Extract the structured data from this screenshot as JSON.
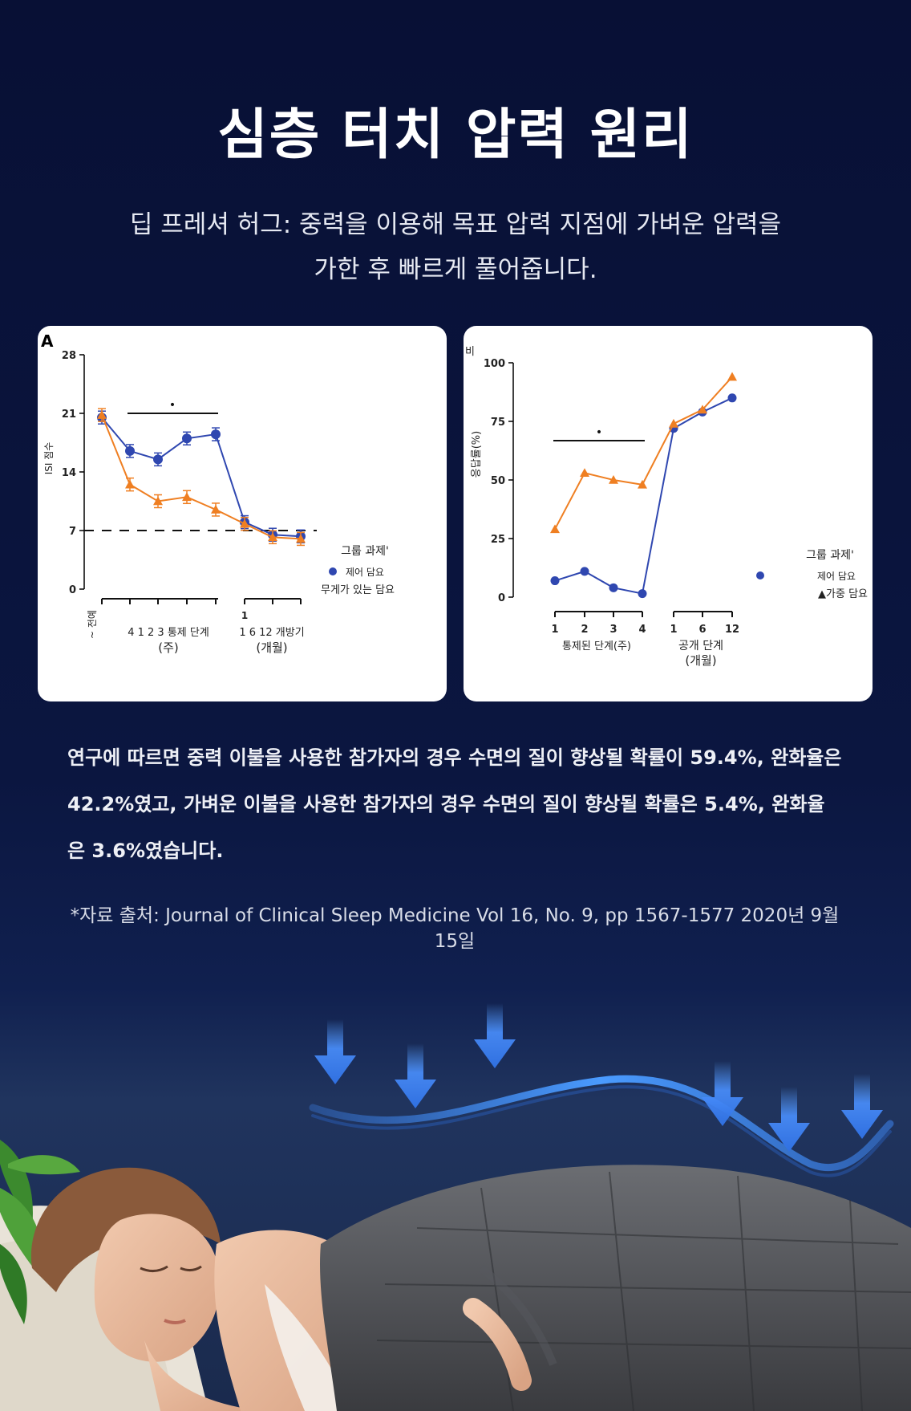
{
  "title": "심층 터치 압력 원리",
  "subtitle_line1": "딥 프레셔 허그: 중력을 이용해 목표 압력 지점에 가벼운 압력을",
  "subtitle_line2": "가한 후 빠르게 풀어줍니다.",
  "body_line1": "연구에 따르면 중력 이불을 사용한 참가자의 경우 수면의 질이 향상될 확률이 59.4%, 완화율은",
  "body_line2": "42.2%였고, 가벼운 이불을 사용한 참가자의 경우 수면의 질이 향상될 확률은 5.4%, 완화율",
  "body_line3": "은 3.6%였습니다.",
  "source_line1": "*자료 출처: Journal of Clinical Sleep Medicine Vol 16, No. 9, pp 1567-1577 2020년 9월",
  "source_line2": "15일",
  "colors": {
    "orange": "#ef7f22",
    "blue": "#2f47b0",
    "background": "#0b1438"
  },
  "chart_data": [
    {
      "type": "line",
      "panel_label": "A",
      "ylabel": "ISI 점수",
      "ylim": [
        0,
        28
      ],
      "yticks": [
        "0",
        "7",
        "14",
        "21",
        "28"
      ],
      "x_labels": {
        "baseline": "~ 전예",
        "controlled_weeks": "4 1 2 3 통제 단계",
        "controlled_unit": "(주)",
        "open_top": "1",
        "open_weeks": "1 6 12 개방기",
        "open_unit": "(개월)"
      },
      "reference_line": 7,
      "significance_marker": "•",
      "legend": {
        "title": "그룹 과제'",
        "series_1": "제어 담요",
        "series_2": "무게가 있는 담요"
      },
      "series": [
        {
          "name": "제어 담요",
          "color": "#2f47b0",
          "values": [
            20.5,
            16.5,
            15.5,
            18,
            18.5,
            8,
            6.5,
            6.3
          ]
        },
        {
          "name": "무게가 있는 담요",
          "color": "#ef7f22",
          "values": [
            20.8,
            12.5,
            10.5,
            11,
            9.5,
            7.8,
            6.2,
            6
          ]
        }
      ]
    },
    {
      "type": "line",
      "panel_label": "비",
      "ylabel": "응답률(%)",
      "ylim": [
        0,
        100
      ],
      "yticks": [
        "0",
        "25",
        "50",
        "75",
        "100"
      ],
      "categories": [
        "1",
        "2",
        "3",
        "4",
        "1",
        "6",
        "12"
      ],
      "x_labels": {
        "controlled": "통제된 단계(주)",
        "open": "공개 단계",
        "open_unit": "(개월)"
      },
      "significance_marker": "•",
      "legend": {
        "title": "그룹 과제'",
        "series_1": "제어 담요",
        "series_2": "▲가중 담요"
      },
      "series": [
        {
          "name": "제어 담요",
          "color": "#2f47b0",
          "values": [
            7,
            11,
            4,
            1.5,
            72,
            79,
            85
          ]
        },
        {
          "name": "가중 담요",
          "color": "#ef7f22",
          "values": [
            29,
            53,
            50,
            48,
            74,
            80,
            94
          ]
        }
      ]
    }
  ]
}
